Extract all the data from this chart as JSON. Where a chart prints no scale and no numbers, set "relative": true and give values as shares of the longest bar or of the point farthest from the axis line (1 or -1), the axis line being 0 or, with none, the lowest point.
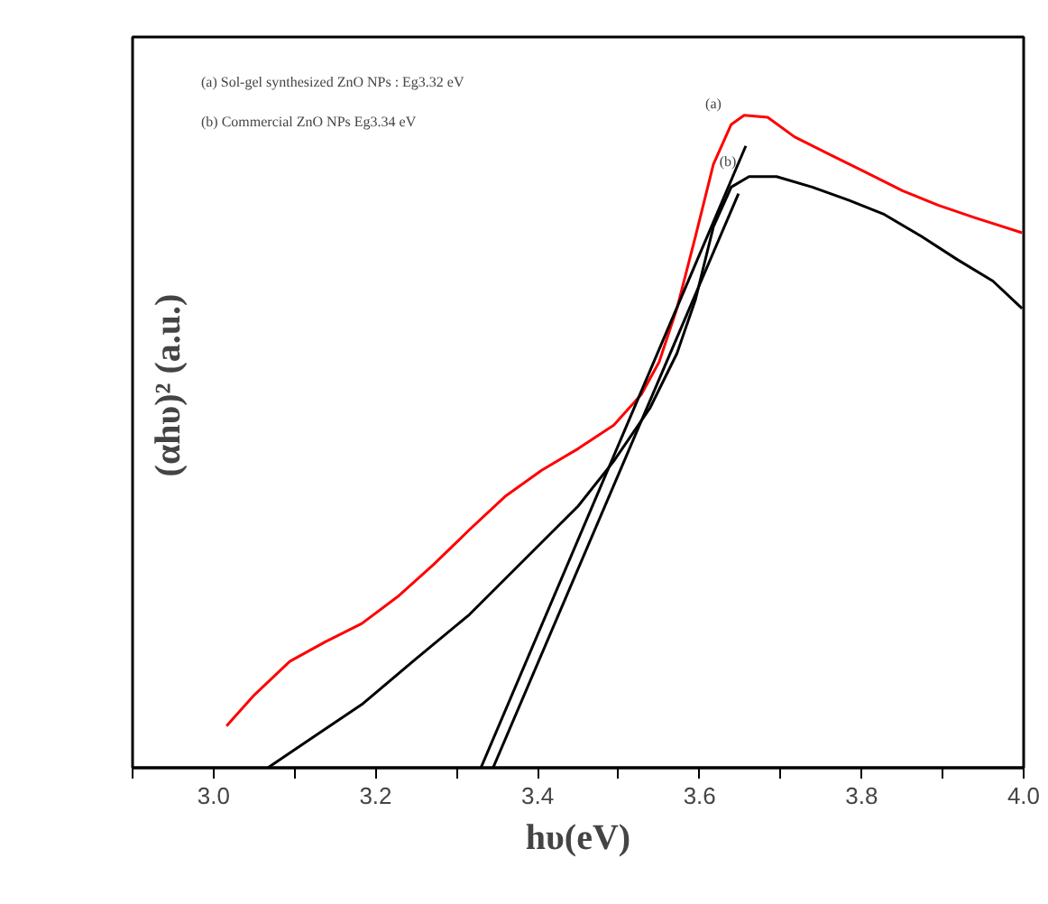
{
  "chart_data": {
    "type": "line",
    "relative": true,
    "xlabel": "hυ(eV)",
    "ylabel": "(αhυ)² (a.u.)",
    "xlim": [
      2.9,
      4.0
    ],
    "xticks": [
      {
        "value": 2.9,
        "label": null
      },
      {
        "value": 3.0,
        "label": "3.0"
      },
      {
        "value": 3.1,
        "label": null
      },
      3.2,
      {
        "value": 3.3,
        "label": null
      },
      3.4,
      {
        "value": 3.5,
        "label": null
      },
      3.6,
      {
        "value": 3.7,
        "label": null
      },
      3.8,
      {
        "value": 3.9,
        "label": null
      },
      {
        "value": 4.0,
        "label": "4.0"
      }
    ],
    "tick_labels": "x",
    "grid": false,
    "series": [
      {
        "color": "#ff0000",
        "x": [
          3.016,
          3.049,
          3.094,
          3.138,
          3.183,
          3.227,
          3.272,
          3.316,
          3.361,
          3.405,
          3.45,
          3.494,
          3.528,
          3.55,
          3.572,
          3.595,
          3.617,
          3.639,
          3.655,
          3.684,
          3.717,
          3.762,
          3.806,
          3.851,
          3.895,
          3.94,
          3.998
        ],
        "values": [
          0.064,
          0.11,
          0.163,
          0.193,
          0.221,
          0.262,
          0.312,
          0.365,
          0.417,
          0.456,
          0.489,
          0.525,
          0.572,
          0.622,
          0.704,
          0.815,
          0.925,
          0.986,
          1.0,
          0.997,
          0.967,
          0.939,
          0.912,
          0.884,
          0.862,
          0.843,
          0.82
        ]
      },
      {
        "color": "#000000",
        "x": [
          3.067,
          3.116,
          3.183,
          3.249,
          3.316,
          3.383,
          3.45,
          3.494,
          3.539,
          3.572,
          3.595,
          3.617,
          3.639,
          3.661,
          3.695,
          3.739,
          3.784,
          3.828,
          3.873,
          3.918,
          3.962,
          3.998
        ],
        "values": [
          0,
          0.041,
          0.097,
          0.166,
          0.235,
          0.318,
          0.401,
          0.47,
          0.552,
          0.635,
          0.718,
          0.829,
          0.89,
          0.906,
          0.906,
          0.89,
          0.87,
          0.848,
          0.815,
          0.779,
          0.746,
          0.704
        ]
      },
      {
        "color": "#000000",
        "x": [
          3.33,
          3.657
        ],
        "values": [
          0,
          0.953
        ]
      },
      {
        "color": "#000000",
        "x": [
          3.345,
          3.648
        ],
        "values": [
          0,
          0.88
        ]
      }
    ],
    "annotations": [
      "(a) Sol-gel synthesized ZnO NPs : Eg3.32 eV",
      "(b) Commercial ZnO NPs Eg3.34 eV",
      "(a)",
      "(b)"
    ]
  }
}
